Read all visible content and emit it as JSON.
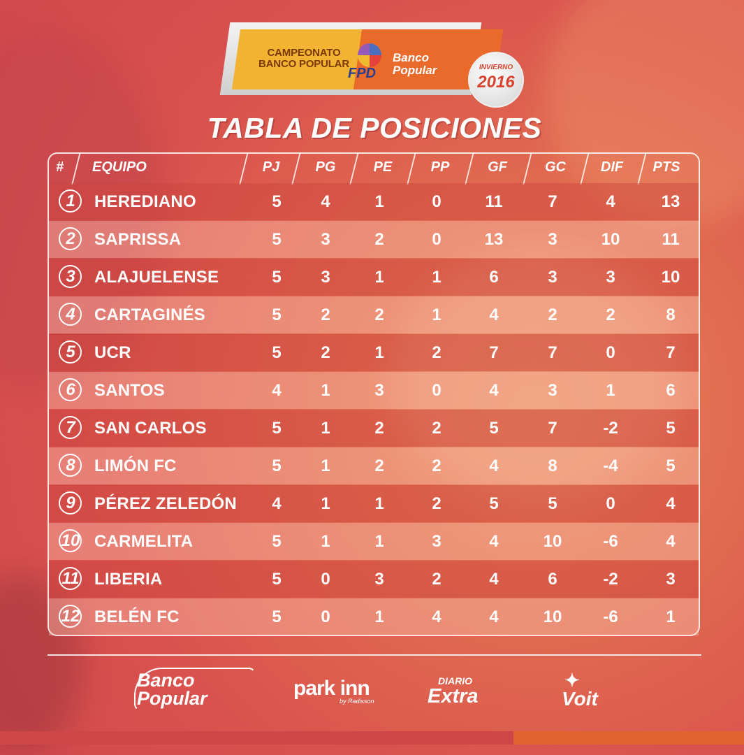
{
  "logo": {
    "campeonato_line1": "CAMPEONATO",
    "campeonato_line2": "BANCO POPULAR",
    "fpd": "FPD",
    "banco_line1": "Banco",
    "banco_line2": "Popular",
    "invierno": "INVIERNO",
    "year": "2016"
  },
  "title": "TABLA DE POSICIONES",
  "table": {
    "headers": {
      "rank": "#",
      "team": "EQUIPO",
      "pj": "PJ",
      "pg": "PG",
      "pe": "PE",
      "pp": "PP",
      "gf": "GF",
      "gc": "GC",
      "dif": "DIF",
      "pts": "PTS"
    },
    "rows": [
      {
        "rank": "1",
        "team": "HEREDIANO",
        "pj": "5",
        "pg": "4",
        "pe": "1",
        "pp": "0",
        "gf": "11",
        "gc": "7",
        "dif": "4",
        "pts": "13"
      },
      {
        "rank": "2",
        "team": "SAPRISSA",
        "pj": "5",
        "pg": "3",
        "pe": "2",
        "pp": "0",
        "gf": "13",
        "gc": "3",
        "dif": "10",
        "pts": "11"
      },
      {
        "rank": "3",
        "team": "ALAJUELENSE",
        "pj": "5",
        "pg": "3",
        "pe": "1",
        "pp": "1",
        "gf": "6",
        "gc": "3",
        "dif": "3",
        "pts": "10"
      },
      {
        "rank": "4",
        "team": "CARTAGINÉS",
        "pj": "5",
        "pg": "2",
        "pe": "2",
        "pp": "1",
        "gf": "4",
        "gc": "2",
        "dif": "2",
        "pts": "8"
      },
      {
        "rank": "5",
        "team": "UCR",
        "pj": "5",
        "pg": "2",
        "pe": "1",
        "pp": "2",
        "gf": "7",
        "gc": "7",
        "dif": "0",
        "pts": "7"
      },
      {
        "rank": "6",
        "team": "SANTOS",
        "pj": "4",
        "pg": "1",
        "pe": "3",
        "pp": "0",
        "gf": "4",
        "gc": "3",
        "dif": "1",
        "pts": "6"
      },
      {
        "rank": "7",
        "team": "SAN CARLOS",
        "pj": "5",
        "pg": "1",
        "pe": "2",
        "pp": "2",
        "gf": "5",
        "gc": "7",
        "dif": "-2",
        "pts": "5"
      },
      {
        "rank": "8",
        "team": "LIMÓN FC",
        "pj": "5",
        "pg": "1",
        "pe": "2",
        "pp": "2",
        "gf": "4",
        "gc": "8",
        "dif": "-4",
        "pts": "5"
      },
      {
        "rank": "9",
        "team": "PÉREZ ZELEDÓN",
        "pj": "4",
        "pg": "1",
        "pe": "1",
        "pp": "2",
        "gf": "5",
        "gc": "5",
        "dif": "0",
        "pts": "4"
      },
      {
        "rank": "10",
        "team": "CARMELITA",
        "pj": "5",
        "pg": "1",
        "pe": "1",
        "pp": "3",
        "gf": "4",
        "gc": "10",
        "dif": "-6",
        "pts": "4"
      },
      {
        "rank": "11",
        "team": "LIBERIA",
        "pj": "5",
        "pg": "0",
        "pe": "3",
        "pp": "2",
        "gf": "4",
        "gc": "6",
        "dif": "-2",
        "pts": "3"
      },
      {
        "rank": "12",
        "team": "BELÉN FC",
        "pj": "5",
        "pg": "0",
        "pe": "1",
        "pp": "4",
        "gf": "4",
        "gc": "10",
        "dif": "-6",
        "pts": "1"
      }
    ]
  },
  "sponsors": {
    "banco_line1": "Banco",
    "banco_line2": "Popular",
    "park_inn": "park inn",
    "park_inn_sub": "by Radisson",
    "diario": "DIARIO",
    "extra": "Extra",
    "voit": "Voit"
  },
  "colors": {
    "background": "#d9524e",
    "accent_orange": "#e1632d",
    "accent_red": "#cf4648",
    "logo_yellow": "#f2b332",
    "text": "#ffffff"
  }
}
